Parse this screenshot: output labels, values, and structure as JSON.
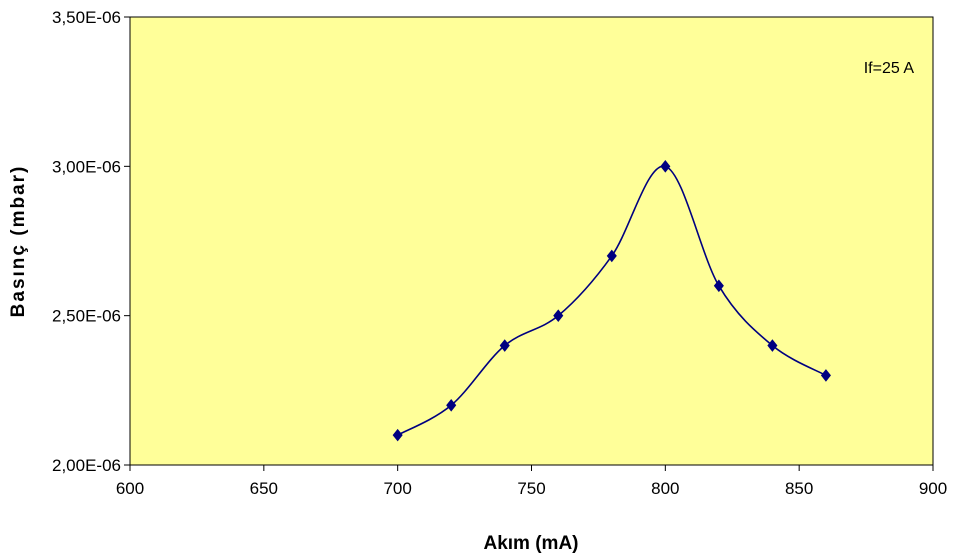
{
  "chart_data": {
    "type": "line",
    "title": "",
    "xlabel": "Akım (mA)",
    "ylabel": "Basınç (mbar)",
    "xlim": [
      600,
      900
    ],
    "ylim": [
      2e-06,
      3.5e-06
    ],
    "x_ticks": [
      600,
      650,
      700,
      750,
      800,
      850,
      900
    ],
    "x_tick_labels": [
      "600",
      "650",
      "700",
      "750",
      "800",
      "850",
      "900"
    ],
    "y_ticks": [
      2e-06,
      2.5e-06,
      3e-06,
      3.5e-06
    ],
    "y_tick_labels": [
      "2,00E-06",
      "2,50E-06",
      "3,00E-06",
      "3,50E-06"
    ],
    "grid": false,
    "legend": "none",
    "annotation": "If=25 A",
    "colors": {
      "plot_background": "#FFFF99",
      "series": "#000080",
      "axis": "#000000"
    },
    "series": [
      {
        "marker": "diamond",
        "smooth": true,
        "x": [
          700,
          720,
          740,
          760,
          780,
          800,
          820,
          840,
          860
        ],
        "y": [
          2.1e-06,
          2.2e-06,
          2.4e-06,
          2.5e-06,
          2.7e-06,
          3e-06,
          2.6e-06,
          2.4e-06,
          2.3e-06
        ]
      }
    ]
  }
}
